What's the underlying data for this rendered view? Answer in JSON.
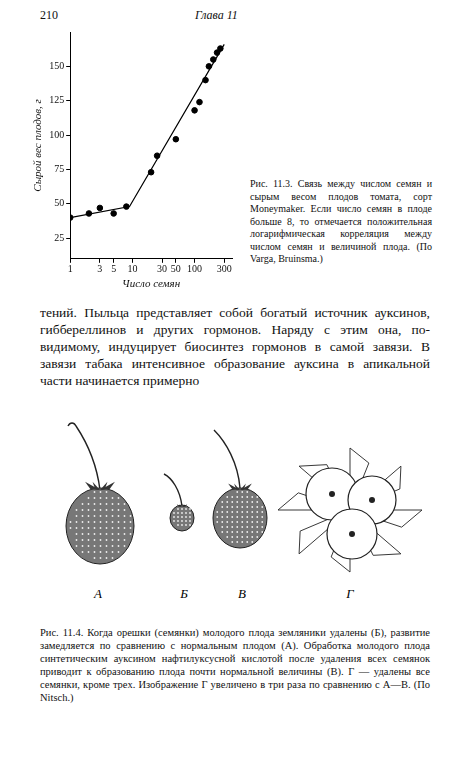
{
  "page": {
    "page_number": "210",
    "running_head": "Глава 11",
    "figure_11_3_caption": "Рис. 11.3. Связь между числом семян и сырым весом плодов томата, сорт Moneymaker. Если число семян в плоде больше 8, то отмечается положительная логарифмическая корреляция между числом семян и величиной плода. (По Varga, Bruinsma.)",
    "body_text": "тений. Пыльца представляет собой богатый источник ауксинов, гиббереллинов и других гормонов. Наряду с этим она, по-видимому, индуцирует биосинтез гормонов в самой завязи. В завязи табака интенсивное образование ауксина в апикальной части начинается примерно",
    "figure_11_4": {
      "panel_labels": [
        "А",
        "Б",
        "В",
        "Г"
      ],
      "caption": "Рис. 11.4. Когда орешки (семянки) молодого плода земляники удалены (Б), развитие замедляется по сравнению с нормальным плодом (А). Обработка молодого плода синтетическим ауксином нафтилуксусной кислотой после удаления всех семянок приводит к образованию плода почти нормальной величины (В). Г — удалены все семянки, кроме трех. Изображение Г увеличено в три раза по сравнению с А—В. (По Nitsch.)"
    }
  },
  "chart_data": {
    "type": "scatter",
    "xlabel": "Число семян",
    "ylabel": "Сырой вес плодов, г",
    "log": "x",
    "grid": false,
    "color": "#000000",
    "xlim": [
      1,
      400
    ],
    "xticks": [
      1,
      3,
      5,
      10,
      30,
      50,
      100,
      300
    ],
    "ylim": [
      10,
      175
    ],
    "yticks": [
      25,
      50,
      75,
      100,
      125,
      150
    ],
    "series": [
      {
        "type": "scatter",
        "marker": "circle",
        "x": [
          1,
          2,
          3,
          5,
          8,
          20,
          25,
          50,
          100,
          120,
          150,
          170,
          200,
          230,
          260
        ],
        "values": [
          40,
          43,
          47,
          43,
          48,
          73,
          85,
          97,
          118,
          124,
          140,
          150,
          155,
          160,
          163
        ]
      },
      {
        "type": "line",
        "line_style": "solid",
        "x": [
          1,
          9,
          300
        ],
        "values": [
          40,
          48,
          166
        ]
      }
    ]
  }
}
